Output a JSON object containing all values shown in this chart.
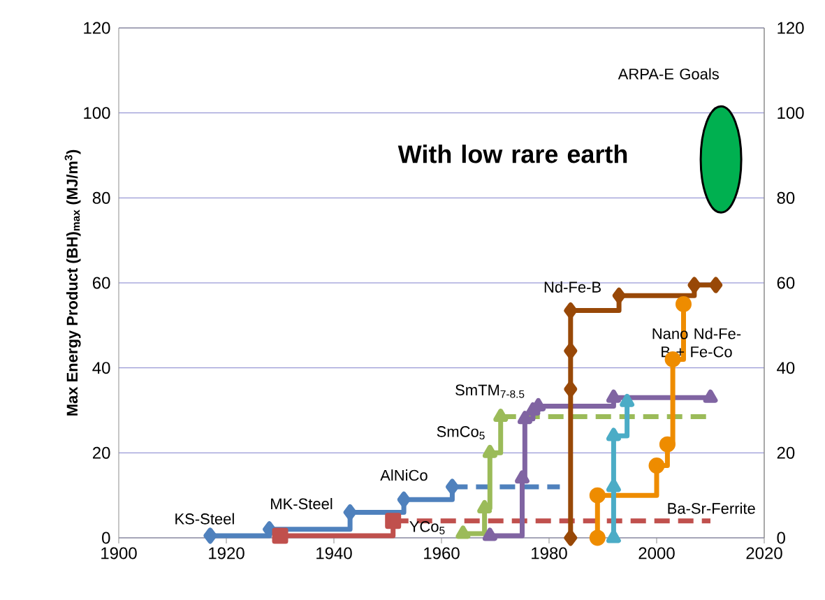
{
  "chart_data": {
    "type": "step",
    "ylabel": "Max Energy Product (BH)$_{max}$ (MJ/m$^{3}$)",
    "xlim": [
      1900,
      2020
    ],
    "ylim": [
      0,
      120
    ],
    "xticks": [
      1900,
      1920,
      1940,
      1960,
      1980,
      2000,
      2020
    ],
    "yticks": [
      0,
      20,
      40,
      60,
      80,
      100,
      120
    ],
    "y2lim": [
      0,
      120
    ],
    "y2ticks": [
      0,
      20,
      40,
      60,
      80,
      100,
      120
    ],
    "grid": "y",
    "series": [
      {
        "color": "#4f81bd",
        "x": [
          1917,
          1928,
          1943,
          1953,
          1962
        ],
        "values": [
          0.5,
          2,
          6,
          9,
          12
        ],
        "marker": "diamond",
        "line_style": "solid"
      },
      {
        "color": "#4f81bd",
        "x": [
          1962,
          1982
        ],
        "values": [
          12,
          12
        ],
        "marker": "none",
        "line_style": "dashed"
      },
      {
        "color": "#c0504d",
        "x": [
          1930,
          1951
        ],
        "values": [
          0.5,
          4
        ],
        "marker": "square",
        "line_style": "solid"
      },
      {
        "color": "#c0504d",
        "x": [
          1951,
          2010
        ],
        "values": [
          4,
          4
        ],
        "marker": "none",
        "line_style": "dashed"
      },
      {
        "color": "#9bbb59",
        "x": [
          1964,
          1968,
          1969,
          1971
        ],
        "values": [
          1,
          7,
          20,
          28.5
        ],
        "marker": "triangle",
        "line_style": "solid"
      },
      {
        "color": "#9bbb59",
        "x": [
          1971,
          2010
        ],
        "values": [
          28.5,
          28.5
        ],
        "marker": "none",
        "line_style": "dashed"
      },
      {
        "color": "#8064a2",
        "x": [
          1969,
          1975,
          1975.5,
          1977,
          1978,
          1992,
          2010
        ],
        "values": [
          0.5,
          14,
          28,
          30,
          31,
          33,
          33
        ],
        "marker": "triangle",
        "line_style": "solid"
      },
      {
        "color": "#984807",
        "x": [
          1984,
          1984,
          1984,
          1984,
          1993,
          2007,
          2011
        ],
        "values": [
          0,
          35,
          44,
          53.5,
          57,
          59.5,
          59.5
        ],
        "marker": "diamond",
        "line_style": "solid"
      },
      {
        "color": "#ee8c00",
        "x": [
          1989,
          1989,
          2000,
          2002,
          2003,
          2005
        ],
        "values": [
          0,
          10,
          17,
          22,
          42,
          55
        ],
        "marker": "circle",
        "line_style": "solid"
      },
      {
        "color": "#4bacc6",
        "x": [
          1992,
          1992,
          1992,
          1994.5
        ],
        "values": [
          0,
          12,
          24,
          32
        ],
        "marker": "triangle",
        "line_style": "solid"
      }
    ],
    "annotations": [
      "KS-Steel",
      "MK-Steel",
      "AlNiCo",
      "YCo$_{5}$",
      "SmCo$_{5}$",
      "SmTM$_{7-8.5}$",
      "Nd-Fe-B",
      "Nano Nd-Fe-B + Fe-Co",
      "Ba-Sr-Ferrite",
      "With low rare earth",
      "ARPA-E Goals"
    ]
  }
}
